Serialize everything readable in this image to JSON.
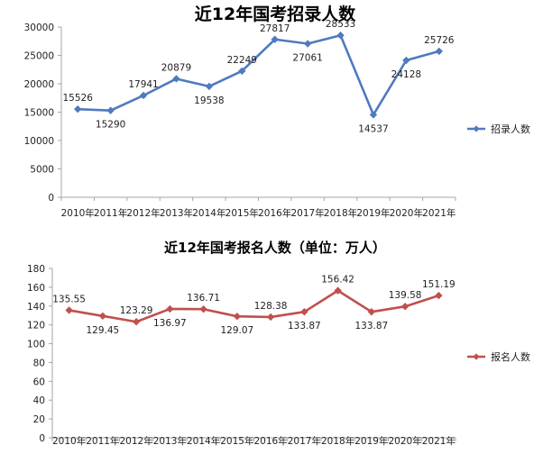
{
  "chart_data": [
    {
      "type": "line",
      "title": "近12年国考招录人数",
      "categories": [
        "2010年",
        "2011年",
        "2012年",
        "2013年",
        "2014年",
        "2015年",
        "2016年",
        "2017年",
        "2018年",
        "2019年",
        "2020年",
        "2021年"
      ],
      "series": [
        {
          "name": "招录人数",
          "color": "#4f7ac0",
          "values": [
            15526,
            15290,
            17941,
            20879,
            19538,
            22249,
            27817,
            27061,
            28533,
            14537,
            24128,
            25726
          ]
        }
      ],
      "yticks": [
        "0",
        "5000",
        "10000",
        "15000",
        "20000",
        "25000",
        "30000"
      ],
      "ylim": [
        0,
        30000
      ],
      "grid": false,
      "legend": "right",
      "xlabel": "",
      "ylabel": ""
    },
    {
      "type": "line",
      "title": "近12年国考报名人数（单位：万人）",
      "categories": [
        "2010年",
        "2011年",
        "2012年",
        "2013年",
        "2014年",
        "2015年",
        "2016年",
        "2017年",
        "2018年",
        "2019年",
        "2020年",
        "2021年"
      ],
      "series": [
        {
          "name": "报名人数",
          "color": "#c0504d",
          "values": [
            135.55,
            129.45,
            123.29,
            136.97,
            136.71,
            129.07,
            128.38,
            133.87,
            156.42,
            133.87,
            139.58,
            151.19
          ]
        }
      ],
      "yticks": [
        "0",
        "20",
        "40",
        "60",
        "80",
        "100",
        "120",
        "140",
        "160",
        "180"
      ],
      "ylim": [
        0,
        180
      ],
      "grid": false,
      "legend": "right",
      "xlabel": "",
      "ylabel": ""
    }
  ]
}
